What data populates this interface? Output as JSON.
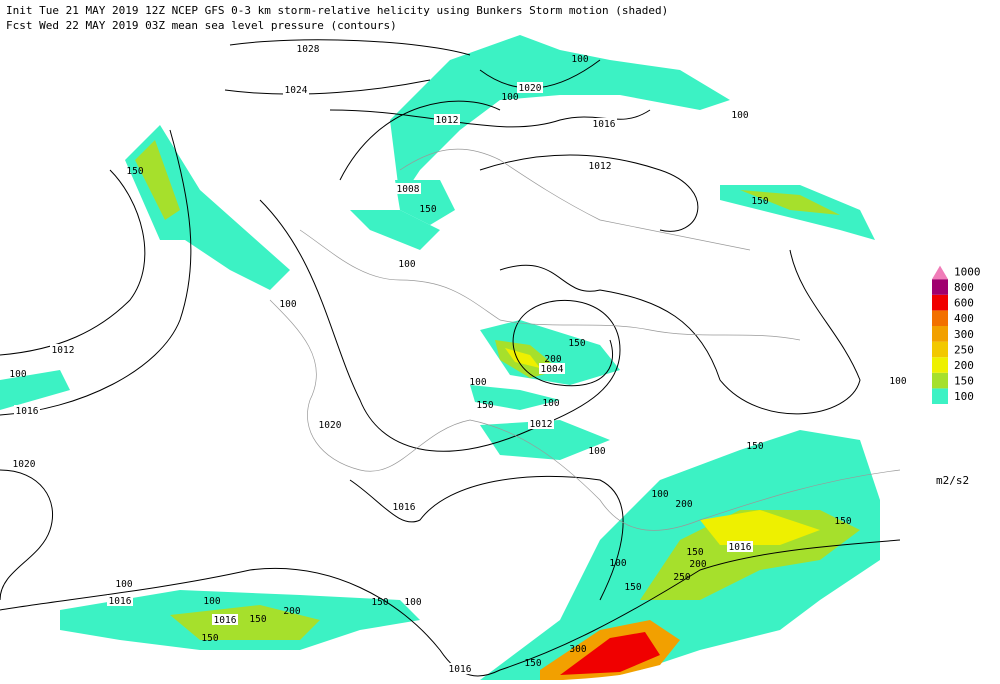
{
  "header": {
    "line1": "Init  Tue 21 MAY 2019 12Z  NCEP GFS 0-3 km storm-relative helicity using Bunkers Storm motion (shaded)",
    "line2": "Fcst Wed 22 MAY 2019 03Z  mean sea level pressure (contours)"
  },
  "legend": {
    "levels": [
      {
        "value": 100,
        "color": "#3cf2c4"
      },
      {
        "value": 150,
        "color": "#a6e02c"
      },
      {
        "value": 200,
        "color": "#eef000"
      },
      {
        "value": 250,
        "color": "#f2c800"
      },
      {
        "value": 300,
        "color": "#f2a000"
      },
      {
        "value": 400,
        "color": "#f27000"
      },
      {
        "value": 600,
        "color": "#f00000"
      },
      {
        "value": 800,
        "color": "#a0006e"
      },
      {
        "value": 1000,
        "color": "#f07cb8"
      }
    ],
    "unit": "m2/s2"
  },
  "isobar_labels": [
    1028,
    1024,
    1020,
    1016,
    1012,
    1012,
    1008,
    1004,
    1012,
    1016,
    1020,
    1020,
    1012,
    1016,
    1016,
    1016,
    1016,
    1016
  ],
  "helicity_labels": [
    100,
    100,
    100,
    150,
    150,
    150,
    100,
    100,
    150,
    200,
    100,
    100,
    150,
    100,
    100,
    150,
    100,
    100,
    200,
    150,
    150,
    200,
    250,
    100,
    150,
    100,
    100,
    150,
    200,
    100,
    150,
    150,
    300,
    150
  ]
}
